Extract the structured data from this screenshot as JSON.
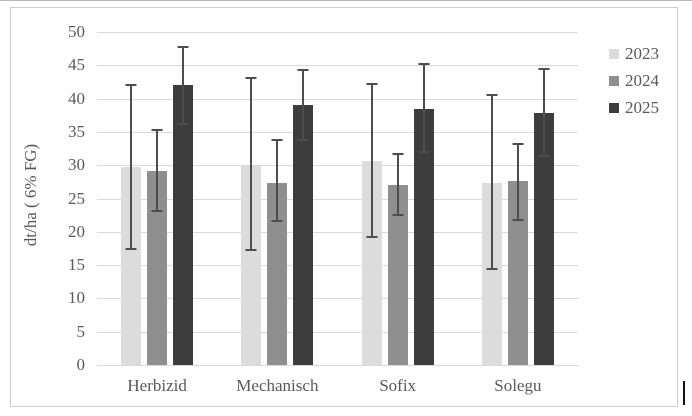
{
  "window": {
    "background": "#ffffff",
    "top_edge_color": "#b7b7b7"
  },
  "chart": {
    "border_color": "#cfcfcf",
    "background": "#ffffff",
    "text_color": "#595959",
    "gridline_color": "#d9d9d9",
    "error_bar_color": "#4d4d4d"
  },
  "chart_data": {
    "type": "bar",
    "title": "",
    "categories": [
      "Herbizid",
      "Mechanisch",
      "Sofix",
      "Solegu"
    ],
    "series": [
      {
        "name": "2023",
        "color": "#dcdcdc",
        "values": [
          29.7,
          29.9,
          30.6,
          27.4
        ],
        "error_low": [
          17.3,
          17.1,
          19.0,
          14.2
        ],
        "error_high": [
          42.2,
          43.2,
          42.4,
          40.7
        ]
      },
      {
        "name": "2024",
        "color": "#8f8f8f",
        "values": [
          29.2,
          27.4,
          27.1,
          27.6
        ],
        "error_low": [
          22.9,
          21.4,
          22.3,
          21.6
        ],
        "error_high": [
          35.5,
          33.9,
          31.8,
          33.4
        ]
      },
      {
        "name": "2025",
        "color": "#3d3d3d",
        "values": [
          42.0,
          39.0,
          38.5,
          37.9
        ],
        "error_low": [
          36.1,
          33.6,
          31.9,
          31.3
        ],
        "error_high": [
          47.9,
          44.5,
          45.3,
          44.6
        ]
      }
    ],
    "xlabel": "",
    "ylabel": "dt/ha ( 6% FG)",
    "ylim": [
      0,
      50
    ],
    "yticks": [
      0,
      5,
      10,
      15,
      20,
      25,
      30,
      35,
      40,
      45,
      50
    ],
    "grid": true,
    "legend_position": "right",
    "error_bars": true
  }
}
